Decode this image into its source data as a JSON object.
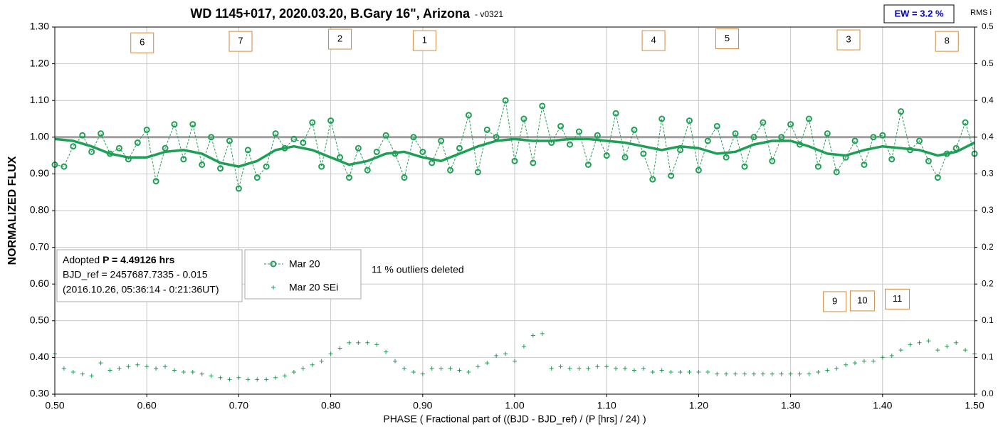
{
  "chart_data": {
    "type": "scatter",
    "title": "WD 1145+017, 2020.03.20, B.Gary 16\", Arizona",
    "subtitle": "- v0321",
    "ew_label": "EW = 3.2 %",
    "y2_label": "RMS i",
    "xlabel": "PHASE ( Fractional part of ((BJD - BJD_ref) / (P [hrs] / 24) )",
    "ylabel": "NORMALIZED FLUX",
    "info": [
      "Adopted ",
      "P = 4.49126 hrs",
      "BJD_ref = 2457687.7335 - 0.015",
      "(2016.10.26, 05:36:14 - 0:21:36UT)"
    ],
    "note": "11 % outliers deleted",
    "xlim": [
      0.5,
      1.5
    ],
    "ylim": [
      0.3,
      1.3
    ],
    "y2lim": [
      0,
      0.5
    ],
    "xticks": [
      {
        "value": 0.5,
        "label": "0.50"
      },
      {
        "value": 0.6,
        "label": "0.60"
      },
      {
        "value": 0.7,
        "label": "0.70"
      },
      {
        "value": 0.8,
        "label": "0.80"
      },
      {
        "value": 0.9,
        "label": "0.90"
      },
      {
        "value": 1.0,
        "label": "1.00"
      },
      {
        "value": 1.1,
        "label": "1.10"
      },
      {
        "value": 1.2,
        "label": "1.20"
      },
      {
        "value": 1.3,
        "label": "1.30"
      },
      {
        "value": 1.4,
        "label": "1.40"
      },
      {
        "value": 1.5,
        "label": "1.50"
      }
    ],
    "yticks": [
      {
        "value": 0.3,
        "label": "0.30"
      },
      {
        "value": 0.4,
        "label": "0.40"
      },
      {
        "value": 0.5,
        "label": "0.50"
      },
      {
        "value": 0.6,
        "label": "0.60"
      },
      {
        "value": 0.7,
        "label": "0.70"
      },
      {
        "value": 0.8,
        "label": "0.80"
      },
      {
        "value": 0.9,
        "label": "0.90"
      },
      {
        "value": 1.0,
        "label": "1.00"
      },
      {
        "value": 1.1,
        "label": "1.10"
      },
      {
        "value": 1.2,
        "label": "1.20"
      },
      {
        "value": 1.3,
        "label": "1.30"
      }
    ],
    "y2ticks": [
      {
        "value": 0,
        "label": "0.0"
      },
      {
        "value": 0.05,
        "label": "0.1"
      },
      0.1,
      {
        "value": 0.15,
        "label": "0.2"
      },
      0.2,
      {
        "value": 0.25,
        "label": "0.3"
      },
      0.3,
      {
        "value": 0.35,
        "label": "0.4"
      },
      0.4,
      {
        "value": 0.45,
        "label": "0.5"
      },
      0.5
    ],
    "grid": true,
    "reference_line": 1.0,
    "x": [
      0.5,
      0.51,
      0.52,
      0.53,
      0.54,
      0.55,
      0.56,
      0.57,
      0.58,
      0.59,
      0.6,
      0.61,
      0.62,
      0.63,
      0.64,
      0.65,
      0.66,
      0.67,
      0.68,
      0.69,
      0.7,
      0.71,
      0.72,
      0.73,
      0.74,
      0.75,
      0.76,
      0.77,
      0.78,
      0.79,
      0.8,
      0.81,
      0.82,
      0.83,
      0.84,
      0.85,
      0.86,
      0.87,
      0.88,
      0.89,
      0.9,
      0.91,
      0.92,
      0.93,
      0.94,
      0.95,
      0.96,
      0.97,
      0.98,
      0.99,
      1.0,
      1.01,
      1.02,
      1.03,
      1.04,
      1.05,
      1.06,
      1.07,
      1.08,
      1.09,
      1.1,
      1.11,
      1.12,
      1.13,
      1.14,
      1.15,
      1.16,
      1.17,
      1.18,
      1.19,
      1.2,
      1.21,
      1.22,
      1.23,
      1.24,
      1.25,
      1.26,
      1.27,
      1.28,
      1.29,
      1.3,
      1.31,
      1.32,
      1.33,
      1.34,
      1.35,
      1.36,
      1.37,
      1.38,
      1.39,
      1.4,
      1.41,
      1.42,
      1.43,
      1.44,
      1.45,
      1.46,
      1.47,
      1.48,
      1.49,
      1.5
    ],
    "series": [
      {
        "name": "Mar 20",
        "color": "#1f9e55",
        "marker": "circle",
        "values": [
          0.925,
          0.92,
          0.975,
          1.005,
          0.96,
          1.01,
          0.955,
          0.97,
          0.94,
          0.985,
          1.02,
          0.88,
          0.97,
          1.035,
          0.94,
          1.035,
          0.925,
          1.0,
          0.915,
          0.99,
          0.86,
          0.965,
          0.89,
          0.92,
          1.01,
          0.97,
          0.995,
          0.985,
          1.04,
          0.92,
          1.045,
          0.945,
          0.89,
          0.97,
          0.91,
          0.96,
          1.005,
          0.955,
          0.89,
          1.0,
          0.96,
          0.93,
          0.99,
          0.91,
          0.97,
          1.06,
          0.905,
          1.02,
          1.0,
          1.1,
          0.935,
          1.05,
          0.93,
          1.085,
          0.985,
          1.03,
          0.98,
          1.015,
          0.925,
          1.005,
          0.95,
          1.065,
          0.945,
          1.02,
          0.955,
          0.885,
          1.05,
          0.895,
          0.965,
          1.045,
          0.91,
          0.99,
          1.03,
          0.945,
          1.01,
          0.92,
          1.0,
          1.04,
          0.935,
          1.0,
          1.035,
          0.98,
          1.05,
          0.92,
          1.01,
          0.905,
          0.945,
          0.99,
          0.925,
          1.0,
          1.005,
          0.94,
          1.07,
          0.965,
          0.99,
          0.935,
          0.89,
          0.955,
          0.97,
          1.04,
          0.955
        ]
      },
      {
        "name": "Mar 20 SEi",
        "color": "#1f9e55",
        "marker": "plus",
        "values": [
          0.41,
          0.37,
          0.36,
          0.355,
          0.35,
          0.385,
          0.365,
          0.37,
          0.375,
          0.38,
          0.375,
          0.37,
          0.375,
          0.365,
          0.36,
          0.36,
          0.355,
          0.35,
          0.345,
          0.34,
          0.345,
          0.34,
          0.34,
          0.34,
          0.345,
          0.35,
          0.36,
          0.37,
          0.38,
          0.39,
          0.41,
          0.425,
          0.44,
          0.44,
          0.44,
          0.435,
          0.415,
          0.39,
          0.37,
          0.36,
          0.355,
          0.37,
          0.37,
          0.37,
          0.365,
          0.36,
          0.375,
          0.385,
          0.405,
          0.41,
          0.39,
          0.43,
          0.46,
          0.465,
          0.37,
          0.375,
          0.37,
          0.37,
          0.37,
          0.375,
          0.375,
          0.37,
          0.37,
          0.365,
          0.37,
          0.36,
          0.365,
          0.36,
          0.36,
          0.36,
          0.36,
          0.36,
          0.355,
          0.355,
          0.355,
          0.355,
          0.355,
          0.355,
          0.355,
          0.355,
          0.355,
          0.355,
          0.355,
          0.36,
          0.365,
          0.37,
          0.38,
          0.385,
          0.39,
          0.39,
          0.4,
          0.405,
          0.42,
          0.435,
          0.44,
          0.445,
          0.42,
          0.43,
          0.44,
          0.42,
          0.41
        ]
      }
    ],
    "fit": {
      "color": "#1f9e55",
      "x": [
        0.5,
        0.52,
        0.54,
        0.56,
        0.58,
        0.6,
        0.62,
        0.64,
        0.66,
        0.68,
        0.7,
        0.72,
        0.74,
        0.76,
        0.78,
        0.8,
        0.82,
        0.84,
        0.86,
        0.88,
        0.9,
        0.92,
        0.94,
        0.96,
        0.98,
        1.0,
        1.02,
        1.04,
        1.06,
        1.08,
        1.1,
        1.12,
        1.14,
        1.16,
        1.18,
        1.2,
        1.22,
        1.24,
        1.26,
        1.28,
        1.3,
        1.32,
        1.34,
        1.36,
        1.38,
        1.4,
        1.42,
        1.44,
        1.46,
        1.48,
        1.5
      ],
      "values": [
        0.995,
        0.99,
        0.975,
        0.955,
        0.945,
        0.945,
        0.96,
        0.965,
        0.955,
        0.93,
        0.92,
        0.935,
        0.965,
        0.975,
        0.965,
        0.945,
        0.925,
        0.935,
        0.955,
        0.96,
        0.945,
        0.935,
        0.955,
        0.975,
        0.99,
        0.995,
        0.99,
        0.99,
        0.995,
        0.995,
        0.99,
        0.985,
        0.975,
        0.965,
        0.975,
        0.97,
        0.955,
        0.96,
        0.98,
        0.99,
        0.99,
        0.975,
        0.955,
        0.95,
        0.965,
        0.975,
        0.97,
        0.965,
        0.95,
        0.96,
        0.985
      ]
    },
    "annotations": [
      {
        "text": "6",
        "x": 0.595,
        "y": 1.257
      },
      {
        "text": "7",
        "x": 0.702,
        "y": 1.261
      },
      {
        "text": "2",
        "x": 0.81,
        "y": 1.267
      },
      {
        "text": "1",
        "x": 0.902,
        "y": 1.263
      },
      {
        "text": "4",
        "x": 1.151,
        "y": 1.263
      },
      {
        "text": "5",
        "x": 1.231,
        "y": 1.268
      },
      {
        "text": "3",
        "x": 1.363,
        "y": 1.265
      },
      {
        "text": "8",
        "x": 1.47,
        "y": 1.261
      },
      {
        "text": "9",
        "x": 1.348,
        "y": 0.552
      },
      {
        "text": "10",
        "x": 1.378,
        "y": 0.554
      },
      {
        "text": "11",
        "x": 1.416,
        "y": 0.559
      }
    ]
  }
}
